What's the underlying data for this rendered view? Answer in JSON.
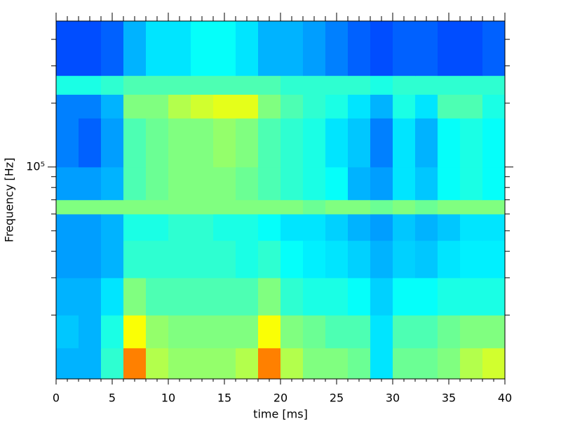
{
  "chart_data": {
    "type": "heatmap",
    "xlabel": "time [ms]",
    "ylabel": "Frequency [Hz]",
    "colormap": "jet",
    "ylog": true,
    "xlim": [
      0,
      40
    ],
    "ylim": [
      10000,
      488000
    ],
    "xticks": [
      0,
      5,
      10,
      15,
      20,
      25,
      30,
      35,
      40
    ],
    "xminorticks": [
      1,
      2,
      3,
      4,
      6,
      7,
      8,
      9,
      11,
      12,
      13,
      14,
      16,
      17,
      18,
      19,
      21,
      22,
      23,
      24,
      26,
      27,
      28,
      29,
      31,
      32,
      33,
      34,
      36,
      37,
      38,
      39
    ],
    "yticks": [
      {
        "value": 100000,
        "label": "10⁵"
      }
    ],
    "yminorticks": [
      20000,
      30000,
      40000,
      50000,
      60000,
      70000,
      80000,
      90000,
      200000,
      300000,
      400000
    ],
    "x": [
      0,
      2,
      4,
      6,
      8,
      10,
      12,
      14,
      16,
      18,
      20,
      22,
      24,
      26,
      28,
      30,
      32,
      34,
      36,
      38,
      40
    ],
    "y": [
      10000,
      14000,
      20000,
      30000,
      45000,
      60000,
      70000,
      100000,
      170000,
      220000,
      270000,
      488000
    ],
    "z": [
      [
        0.3,
        0.3,
        0.42,
        0.75,
        0.55,
        0.52,
        0.52,
        0.52,
        0.55,
        0.75,
        0.55,
        0.5,
        0.5,
        0.48,
        0.35,
        0.48,
        0.48,
        0.5,
        0.55,
        0.58
      ],
      [
        0.32,
        0.3,
        0.4,
        0.62,
        0.52,
        0.5,
        0.5,
        0.5,
        0.5,
        0.62,
        0.5,
        0.48,
        0.45,
        0.45,
        0.35,
        0.45,
        0.45,
        0.48,
        0.5,
        0.5
      ],
      [
        0.3,
        0.3,
        0.35,
        0.5,
        0.45,
        0.45,
        0.45,
        0.45,
        0.45,
        0.5,
        0.42,
        0.4,
        0.4,
        0.38,
        0.33,
        0.38,
        0.38,
        0.4,
        0.4,
        0.4
      ],
      [
        0.28,
        0.28,
        0.3,
        0.42,
        0.42,
        0.42,
        0.42,
        0.42,
        0.4,
        0.42,
        0.38,
        0.36,
        0.35,
        0.33,
        0.3,
        0.33,
        0.32,
        0.35,
        0.36,
        0.36
      ],
      [
        0.28,
        0.28,
        0.3,
        0.4,
        0.4,
        0.42,
        0.42,
        0.4,
        0.4,
        0.38,
        0.35,
        0.35,
        0.33,
        0.3,
        0.28,
        0.32,
        0.3,
        0.32,
        0.35,
        0.35
      ],
      [
        0.5,
        0.5,
        0.5,
        0.5,
        0.5,
        0.5,
        0.5,
        0.5,
        0.5,
        0.5,
        0.5,
        0.48,
        0.5,
        0.5,
        0.48,
        0.5,
        0.48,
        0.5,
        0.5,
        0.5
      ],
      [
        0.28,
        0.28,
        0.3,
        0.45,
        0.48,
        0.5,
        0.5,
        0.5,
        0.48,
        0.45,
        0.42,
        0.4,
        0.38,
        0.3,
        0.28,
        0.35,
        0.32,
        0.38,
        0.4,
        0.38
      ],
      [
        0.25,
        0.22,
        0.28,
        0.45,
        0.48,
        0.5,
        0.5,
        0.52,
        0.5,
        0.45,
        0.42,
        0.4,
        0.35,
        0.32,
        0.25,
        0.35,
        0.3,
        0.38,
        0.4,
        0.38
      ],
      [
        0.25,
        0.25,
        0.3,
        0.5,
        0.5,
        0.55,
        0.58,
        0.6,
        0.6,
        0.5,
        0.45,
        0.42,
        0.4,
        0.35,
        0.3,
        0.4,
        0.35,
        0.45,
        0.45,
        0.4
      ],
      [
        0.4,
        0.4,
        0.42,
        0.45,
        0.45,
        0.45,
        0.45,
        0.45,
        0.45,
        0.45,
        0.42,
        0.42,
        0.42,
        0.42,
        0.4,
        0.42,
        0.42,
        0.42,
        0.42,
        0.42
      ],
      [
        0.2,
        0.2,
        0.22,
        0.3,
        0.35,
        0.35,
        0.38,
        0.38,
        0.35,
        0.3,
        0.3,
        0.28,
        0.25,
        0.22,
        0.2,
        0.22,
        0.22,
        0.2,
        0.2,
        0.22
      ]
    ]
  }
}
